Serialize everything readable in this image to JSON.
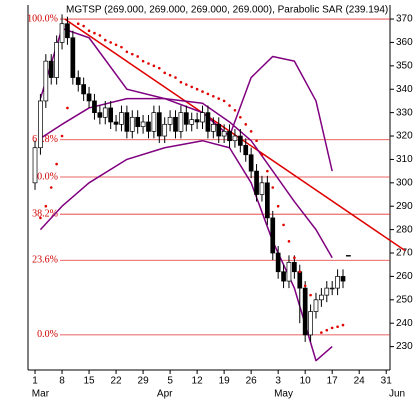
{
  "chart_data": {
    "type": "candlestick",
    "title": "MGTSP (269.000, 269.000, 269.000, 269.000), Parabolic SAR (239.194)",
    "open": [
      300,
      315,
      335,
      352,
      345,
      360,
      368,
      362,
      345,
      342,
      338,
      335,
      330,
      328,
      332,
      326,
      325,
      330,
      322,
      328,
      324,
      326,
      322,
      330,
      320,
      325,
      328,
      322,
      330,
      325,
      327,
      326,
      330,
      322,
      325,
      320,
      322,
      318,
      320,
      316,
      312,
      305,
      295,
      300,
      285,
      270,
      262,
      258,
      266,
      262,
      255,
      235,
      245,
      250,
      252,
      255,
      255,
      260,
      269
    ],
    "high": [
      318,
      338,
      355,
      355,
      363,
      372,
      371,
      365,
      348,
      345,
      341,
      338,
      333,
      335,
      335,
      329,
      333,
      333,
      331,
      331,
      329,
      329,
      333,
      333,
      328,
      331,
      331,
      333,
      333,
      330,
      330,
      333,
      333,
      328,
      328,
      325,
      325,
      323,
      323,
      319,
      315,
      308,
      303,
      303,
      288,
      273,
      265,
      269,
      269,
      265,
      258,
      248,
      253,
      255,
      258,
      258,
      263,
      263,
      269
    ],
    "low": [
      297,
      312,
      332,
      342,
      342,
      357,
      359,
      342,
      339,
      335,
      332,
      327,
      325,
      325,
      323,
      322,
      322,
      319,
      319,
      321,
      321,
      319,
      319,
      317,
      317,
      322,
      319,
      319,
      322,
      322,
      323,
      323,
      319,
      319,
      317,
      317,
      315,
      315,
      313,
      309,
      302,
      292,
      292,
      282,
      267,
      259,
      255,
      255,
      259,
      240,
      232,
      232,
      242,
      247,
      249,
      252,
      252,
      255,
      269
    ],
    "close": [
      315,
      335,
      352,
      345,
      360,
      368,
      362,
      345,
      342,
      338,
      335,
      330,
      328,
      332,
      326,
      325,
      330,
      322,
      328,
      324,
      326,
      322,
      330,
      320,
      325,
      328,
      322,
      330,
      325,
      327,
      326,
      330,
      322,
      325,
      320,
      322,
      318,
      320,
      316,
      312,
      305,
      295,
      300,
      285,
      270,
      262,
      258,
      266,
      262,
      255,
      235,
      245,
      250,
      252,
      255,
      255,
      260,
      258,
      269
    ],
    "up_color": "#ffffff",
    "down_color": "#000000",
    "bands": {
      "color": "#800080",
      "x": [
        1,
        5,
        10,
        17,
        24,
        31,
        36,
        40,
        44,
        48,
        52,
        55
      ],
      "upper": [
        336,
        366,
        362,
        340,
        336,
        330,
        320,
        345,
        354,
        352,
        335,
        305
      ],
      "middle": [
        319,
        325,
        332,
        336,
        336,
        334,
        326,
        318,
        305,
        292,
        280,
        268
      ],
      "lower": [
        280,
        290,
        300,
        310,
        315,
        318,
        315,
        300,
        275,
        255,
        224,
        230
      ]
    },
    "sar": {
      "color": "#e00000",
      "x": [
        1,
        2,
        3,
        4,
        5,
        6,
        8,
        9,
        10,
        11,
        12,
        13,
        14,
        15,
        16,
        17,
        18,
        19,
        20,
        21,
        22,
        23,
        24,
        25,
        26,
        27,
        28,
        29,
        30,
        31,
        32,
        33,
        34,
        35,
        36,
        37,
        38,
        39,
        40,
        41,
        42,
        43,
        44,
        45,
        46,
        47,
        48,
        49,
        50,
        51,
        53,
        54,
        55,
        56,
        57
      ],
      "values": [
        285,
        290,
        298,
        308,
        320,
        332,
        368,
        367,
        365,
        364,
        363,
        361,
        360,
        359,
        358,
        356,
        355,
        354,
        352,
        351,
        350,
        349,
        347,
        346,
        345,
        343,
        342,
        341,
        340,
        339,
        338,
        337,
        336,
        335,
        333,
        331,
        328,
        325,
        322,
        318,
        312,
        305,
        298,
        290,
        282,
        275,
        268,
        262,
        256,
        252,
        236,
        237,
        238,
        238.5,
        239.194
      ]
    },
    "trendline": {
      "color": "#e00000",
      "x": [
        5.5,
        68.5
      ],
      "values": [
        370,
        271
      ]
    },
    "fib": {
      "color": "#e03030",
      "levels": [
        {
          "value": 370,
          "label": "100.0%"
        },
        {
          "value": 318.4,
          "label": "61.8%"
        },
        {
          "value": 302.5,
          "label": "50.0%"
        },
        {
          "value": 286.6,
          "label": "38.2%"
        },
        {
          "value": 266.9,
          "label": "23.6%"
        },
        {
          "value": 235,
          "label": "0.0%"
        }
      ]
    },
    "xlim": [
      -1.3,
      65.7
    ],
    "ylim": [
      220,
      376
    ],
    "yticks": [
      230,
      240,
      250,
      260,
      270,
      280,
      290,
      300,
      310,
      320,
      330,
      340,
      350,
      360,
      370
    ],
    "xticks": [
      {
        "value": 0,
        "label": "1"
      },
      {
        "value": 5,
        "label": "8"
      },
      {
        "value": 10,
        "label": "15"
      },
      {
        "value": 15,
        "label": "22"
      },
      {
        "value": 20,
        "label": "29"
      },
      {
        "value": 25,
        "label": "5"
      },
      {
        "value": 30,
        "label": "12"
      },
      {
        "value": 35,
        "label": "19"
      },
      {
        "value": 40,
        "label": "26"
      },
      {
        "value": 45,
        "label": "3"
      },
      {
        "value": 50,
        "label": "10"
      },
      {
        "value": 55,
        "label": "17"
      },
      {
        "value": 60,
        "label": "24"
      },
      {
        "value": 65,
        "label": "31"
      }
    ],
    "month_labels": [
      {
        "value": 1,
        "label": "Mar"
      },
      {
        "value": 24,
        "label": "Apr"
      },
      {
        "value": 46,
        "label": "May"
      },
      {
        "value": 67,
        "label": "Jun"
      }
    ]
  }
}
